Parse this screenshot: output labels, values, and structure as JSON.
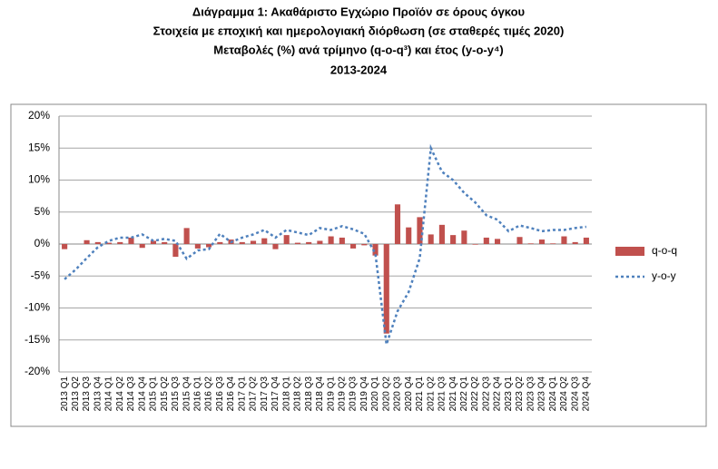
{
  "chart_data": {
    "type": "bar_line",
    "title": [
      "Διάγραμμα 1: Ακαθάριστο Εγχώριο Προϊόν σε όρους όγκου",
      "Στοιχεία με εποχική και ημερολογιακή διόρθωση (σε σταθερές τιμές 2020)",
      "Μεταβολές (%) ανά τρίμηνο (q-o-q³) και έτος (y-o-y⁴)",
      "2013-2024"
    ],
    "categories": [
      "2013 Q1",
      "2013 Q2",
      "2013 Q3",
      "2013 Q4",
      "2014 Q1",
      "2014 Q2",
      "2014 Q3",
      "2014 Q4",
      "2015 Q1",
      "2015 Q2",
      "2015 Q3",
      "2015 Q4",
      "2016 Q1",
      "2016 Q2",
      "2016 Q3",
      "2016 Q4",
      "2017 Q1",
      "2017 Q2",
      "2017 Q3",
      "2017 Q4",
      "2018 Q1",
      "2018 Q2",
      "2018 Q3",
      "2018 Q4",
      "2019 Q1",
      "2019 Q2",
      "2019 Q3",
      "2019 Q4",
      "2020 Q1",
      "2020 Q2",
      "2020 Q3",
      "2020 Q4",
      "2021 Q1",
      "2021 Q2",
      "2021 Q3",
      "2021 Q4",
      "2022 Q1",
      "2022 Q2",
      "2022 Q3",
      "2022 Q4",
      "2023 Q1",
      "2023 Q2",
      "2023 Q3",
      "2023 Q4",
      "2024 Q1",
      "2024 Q2",
      "2024 Q3",
      "2024 Q4"
    ],
    "series": [
      {
        "name": "q-o-q",
        "type": "bar",
        "color": "#c0504d",
        "values": [
          -0.8,
          0.0,
          0.6,
          0.3,
          0.2,
          0.3,
          1.0,
          -0.6,
          0.5,
          0.3,
          -2.0,
          2.5,
          -0.7,
          -0.5,
          0.3,
          0.7,
          0.3,
          0.5,
          0.9,
          -0.8,
          1.4,
          0.2,
          0.3,
          0.5,
          1.2,
          1.0,
          -0.7,
          -0.2,
          -1.8,
          -14.0,
          6.2,
          2.6,
          4.2,
          1.5,
          3.0,
          1.4,
          2.1,
          -0.1,
          1.0,
          0.8,
          0.0,
          1.1,
          0.1,
          0.7,
          0.1,
          1.2,
          0.3,
          1.0
        ]
      },
      {
        "name": "y-o-y",
        "type": "line",
        "color": "#4f81bd",
        "values": [
          -5.5,
          -4.0,
          -2.2,
          -0.5,
          0.5,
          1.0,
          1.0,
          1.5,
          0.5,
          0.8,
          0.5,
          -2.3,
          -1.0,
          -0.8,
          1.6,
          0.3,
          1.0,
          1.5,
          2.2,
          1.0,
          2.2,
          1.8,
          1.4,
          2.5,
          2.2,
          2.8,
          2.3,
          1.6,
          -1.5,
          -15.7,
          -10.5,
          -7.5,
          -2.2,
          15.0,
          11.3,
          10.0,
          8.0,
          6.5,
          4.5,
          3.8,
          2.0,
          2.9,
          2.5,
          2.0,
          2.2,
          2.2,
          2.5,
          2.7
        ]
      }
    ],
    "ylim": [
      -20,
      20
    ],
    "yticks": [
      {
        "value": -20,
        "label": "-20%"
      },
      {
        "value": -15,
        "label": "-15%"
      },
      {
        "value": -10,
        "label": "-10%"
      },
      {
        "value": -5,
        "label": "-5%"
      },
      {
        "value": 0,
        "label": "0%"
      },
      {
        "value": 5,
        "label": "5%"
      },
      {
        "value": 10,
        "label": "10%"
      },
      {
        "value": 15,
        "label": "15%"
      },
      {
        "value": 20,
        "label": "20%"
      }
    ],
    "grid": true,
    "legend": "right"
  }
}
